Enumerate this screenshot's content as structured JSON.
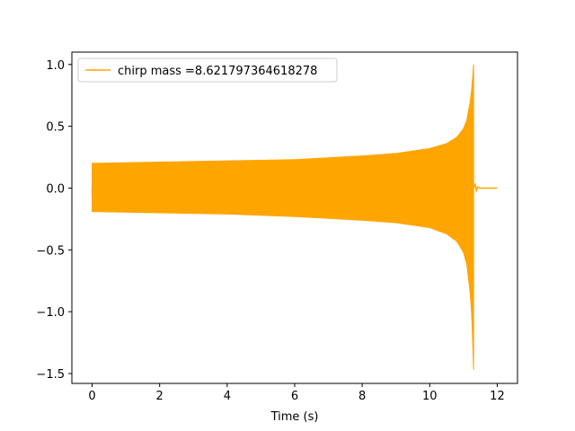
{
  "chart_data": {
    "type": "line",
    "title": "",
    "xlabel": "Time (s)",
    "ylabel": "",
    "xlim": [
      -0.6,
      12.6
    ],
    "ylim": [
      -1.58,
      1.1
    ],
    "xticks": [
      0,
      2,
      4,
      6,
      8,
      10,
      12
    ],
    "xtick_labels": [
      "0",
      "2",
      "4",
      "6",
      "8",
      "10",
      "12"
    ],
    "yticks": [
      1.0,
      0.5,
      0.0,
      -0.5,
      -1.0,
      -1.5
    ],
    "ytick_labels": [
      "1.0",
      "0.5",
      "0.0",
      "−0.5",
      "−1.0",
      "−1.5"
    ],
    "grid": false,
    "legend_position": "top-left",
    "series": [
      {
        "name": "chirp mass =8.621797364618278",
        "color": "#ffa500",
        "signal": "chirp",
        "x_start": 0.0,
        "x_merger": 11.3,
        "x_end": 12.0,
        "amplitude_envelope": {
          "x": [
            0.0,
            2.0,
            4.0,
            6.0,
            8.0,
            9.0,
            10.0,
            10.5,
            10.8,
            11.0,
            11.1,
            11.2,
            11.25,
            11.3
          ],
          "upper": [
            0.2,
            0.21,
            0.22,
            0.23,
            0.26,
            0.28,
            0.32,
            0.36,
            0.41,
            0.48,
            0.55,
            0.7,
            0.82,
            1.0
          ],
          "lower": [
            -0.19,
            -0.2,
            -0.21,
            -0.23,
            -0.26,
            -0.28,
            -0.32,
            -0.37,
            -0.43,
            -0.52,
            -0.62,
            -0.85,
            -1.05,
            -1.47
          ]
        }
      }
    ]
  }
}
